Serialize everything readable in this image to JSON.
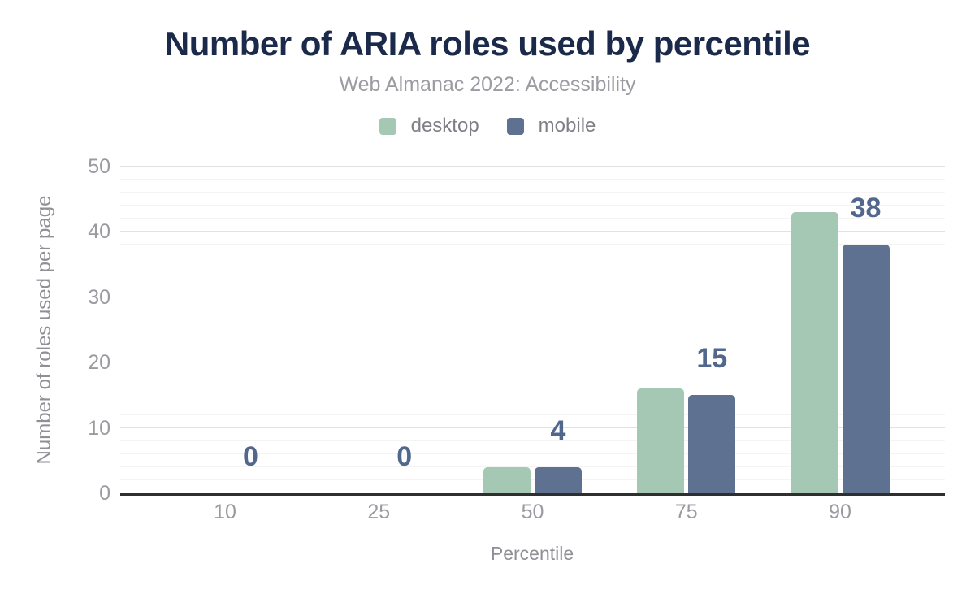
{
  "chart_data": {
    "type": "bar",
    "title": "Number of ARIA roles used by percentile",
    "subtitle": "Web Almanac 2022: Accessibility",
    "xlabel": "Percentile",
    "ylabel": "Number of roles used per page",
    "categories": [
      "10",
      "25",
      "50",
      "75",
      "90"
    ],
    "series": [
      {
        "name": "desktop",
        "color": "#a5c8b5",
        "values": [
          0,
          0,
          4,
          16,
          43
        ]
      },
      {
        "name": "mobile",
        "color": "#5e7190",
        "values": [
          0,
          0,
          4,
          15,
          38
        ]
      }
    ],
    "data_labels": {
      "series": "mobile",
      "values": [
        0,
        0,
        4,
        15,
        38
      ]
    },
    "ylim": [
      0,
      50
    ],
    "y_ticks": [
      0,
      10,
      20,
      30,
      40,
      50
    ],
    "grid": {
      "minor_step": 2,
      "major_step": 10,
      "enabled": true
    },
    "legend_position": "top"
  },
  "colors": {
    "background": "#ffffff",
    "title": "#1b2a4a",
    "subtitle": "#9b9ba1",
    "legend_text": "#7f7f85",
    "tick_label": "#9a9aa0",
    "axis_title": "#8f8f95",
    "axis_line": "#2f2f2f",
    "grid_major": "#e2e2e2",
    "grid_minor": "#f4f4f4",
    "data_label": "#52678c"
  }
}
